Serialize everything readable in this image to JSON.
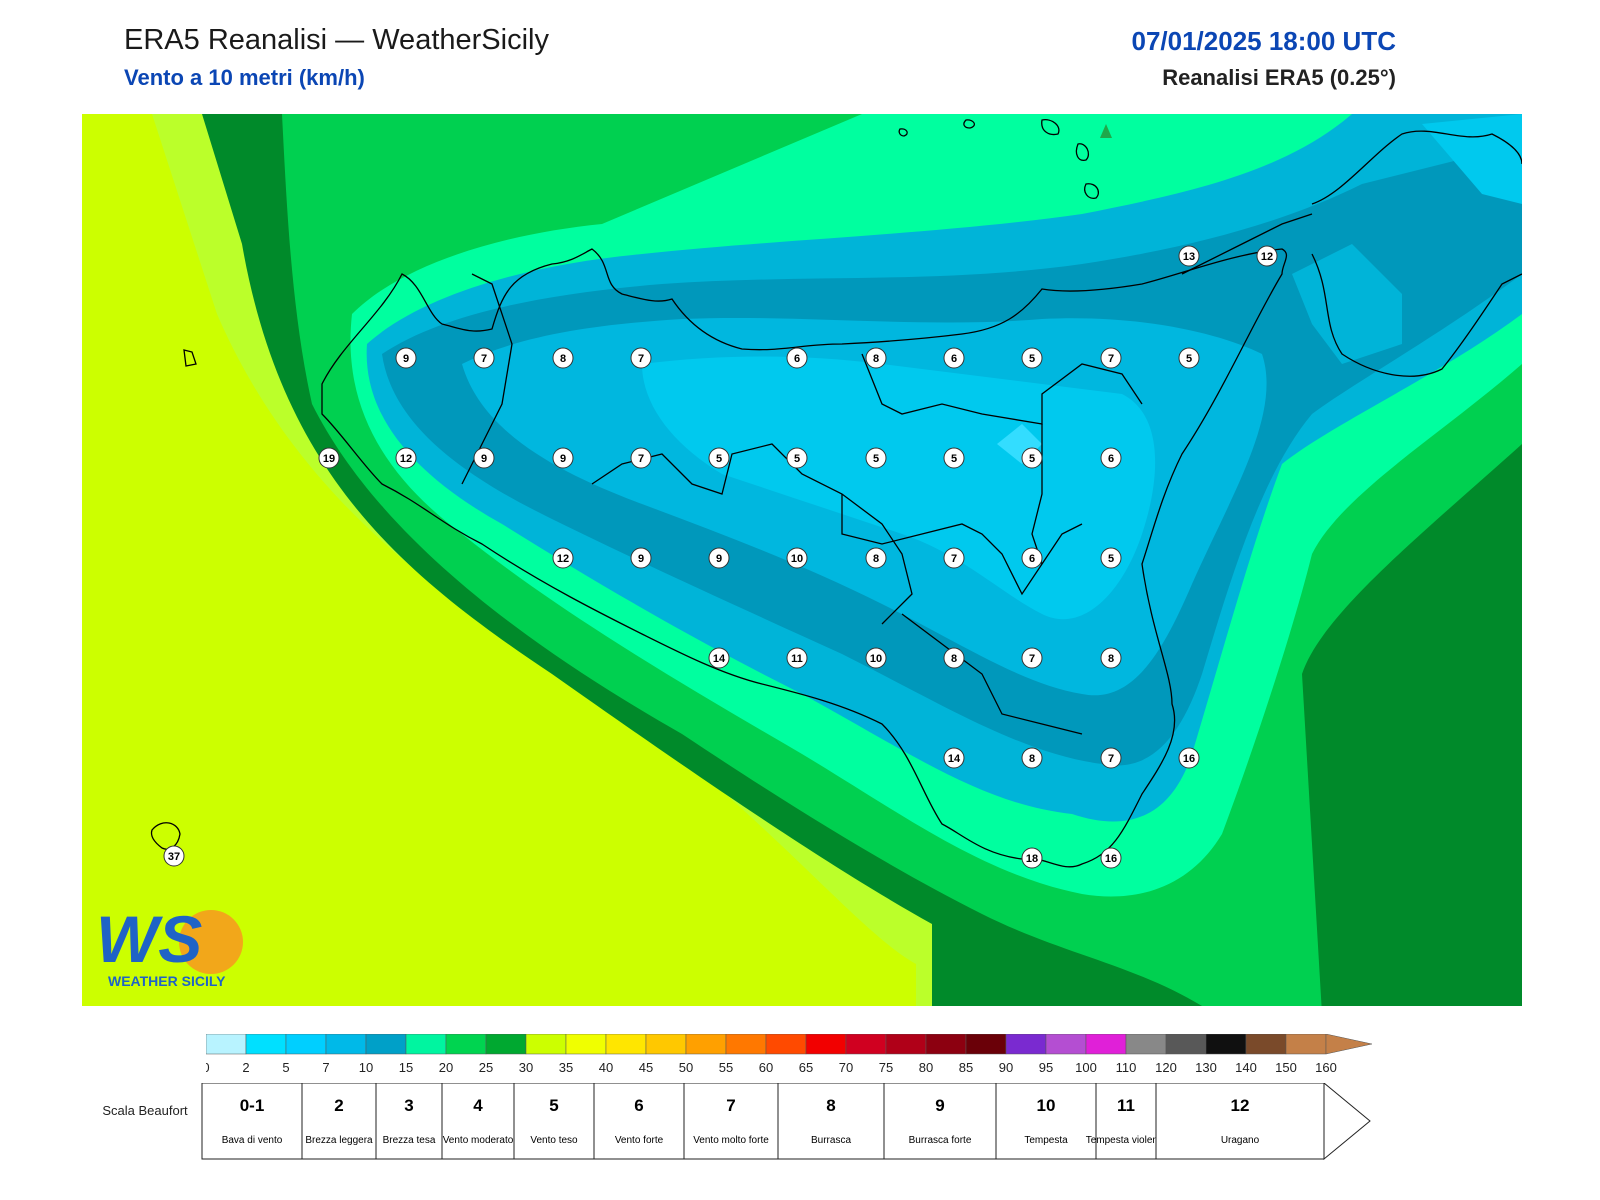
{
  "header": {
    "title": "ERA5 Reanalisi — WeatherSicily",
    "subtitle": "Vento a 10 metri (km/h)",
    "datetime": "07/01/2025 18:00 UTC",
    "source": "Reanalisi ERA5 (0.25°)"
  },
  "logo": {
    "letters": "WS",
    "caption": "WEATHER SICILY"
  },
  "colors": {
    "title_blue": "#0b46b4",
    "land_outline": "#000000"
  },
  "stations": [
    {
      "v": "9"
    },
    {
      "v": "7"
    },
    {
      "v": "8"
    },
    {
      "v": "7"
    },
    {
      "v": "6"
    },
    {
      "v": "8"
    },
    {
      "v": "6"
    },
    {
      "v": "5"
    },
    {
      "v": "7"
    },
    {
      "v": "5"
    },
    {
      "v": "19"
    },
    {
      "v": "12"
    },
    {
      "v": "9"
    },
    {
      "v": "9"
    },
    {
      "v": "7"
    },
    {
      "v": "5"
    },
    {
      "v": "5"
    },
    {
      "v": "5"
    },
    {
      "v": "5"
    },
    {
      "v": "5"
    },
    {
      "v": "6"
    },
    {
      "v": "12"
    },
    {
      "v": "9"
    },
    {
      "v": "9"
    },
    {
      "v": "10"
    },
    {
      "v": "8"
    },
    {
      "v": "7"
    },
    {
      "v": "6"
    },
    {
      "v": "5"
    },
    {
      "v": "14"
    },
    {
      "v": "11"
    },
    {
      "v": "10"
    },
    {
      "v": "8"
    },
    {
      "v": "7"
    },
    {
      "v": "8"
    },
    {
      "v": "14"
    },
    {
      "v": "8"
    },
    {
      "v": "7"
    },
    {
      "v": "16"
    },
    {
      "v": "18"
    },
    {
      "v": "16"
    },
    {
      "v": "13"
    },
    {
      "v": "12"
    },
    {
      "v": "37"
    }
  ],
  "colorbar": {
    "ticks": [
      "0",
      "2",
      "5",
      "7",
      "10",
      "15",
      "20",
      "25",
      "30",
      "35",
      "40",
      "45",
      "50",
      "55",
      "60",
      "65",
      "70",
      "75",
      "80",
      "85",
      "90",
      "95",
      "100",
      "110",
      "120",
      "130",
      "140",
      "150",
      "160"
    ],
    "colors": [
      "#b8f3ff",
      "#00e0ff",
      "#00cfff",
      "#00b9e8",
      "#00a0c8",
      "#00f5a0",
      "#00d450",
      "#00a830",
      "#ccff00",
      "#f0ff00",
      "#ffe600",
      "#ffc800",
      "#ffa000",
      "#ff7800",
      "#ff4a00",
      "#f20000",
      "#d00020",
      "#b00018",
      "#8c0010",
      "#6a0008",
      "#7a2ad0",
      "#b44ed2",
      "#e020d8",
      "#888888",
      "#585858",
      "#101010",
      "#7a4a2a",
      "#c48048"
    ]
  },
  "beaufort": {
    "label": "Scala Beaufort",
    "items": [
      {
        "num": "0-1",
        "desc": "Bava di vento"
      },
      {
        "num": "2",
        "desc": "Brezza leggera"
      },
      {
        "num": "3",
        "desc": "Brezza tesa"
      },
      {
        "num": "4",
        "desc": "Vento moderato"
      },
      {
        "num": "5",
        "desc": "Vento teso"
      },
      {
        "num": "6",
        "desc": "Vento forte"
      },
      {
        "num": "7",
        "desc": "Vento molto forte"
      },
      {
        "num": "8",
        "desc": "Burrasca"
      },
      {
        "num": "9",
        "desc": "Burrasca forte"
      },
      {
        "num": "10",
        "desc": "Tempesta"
      },
      {
        "num": "11",
        "desc": "Tempesta violenta"
      },
      {
        "num": "12",
        "desc": "Uragano"
      }
    ]
  }
}
